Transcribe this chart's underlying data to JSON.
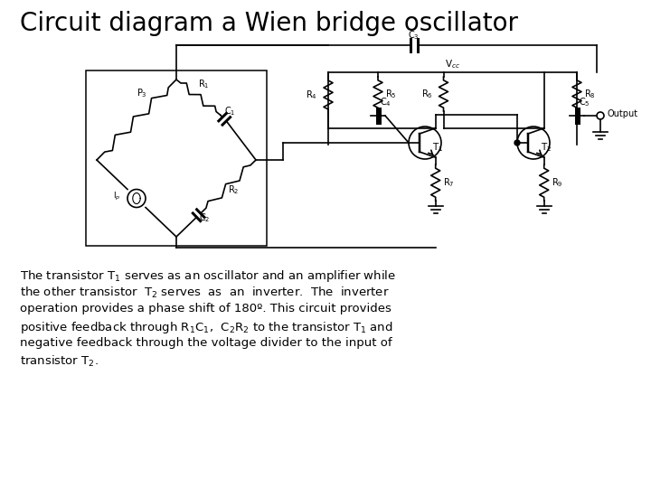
{
  "title": "Circuit diagram a Wien bridge oscillator",
  "title_fontsize": 20,
  "bg_color": "#ffffff",
  "text_color": "#000000",
  "body_lines": [
    "The transistor T$_1$ serves as an oscillator and an amplifier while",
    "the other transistor  T$_2$ serves  as  an  inverter.  The  inverter",
    "operation provides a phase shift of 180º. This circuit provides",
    "positive feedback through R$_1$C$_1$,  C$_2$R$_2$ to the transistor T$_1$ and",
    "negative feedback through the voltage divider to the input of",
    "transistor T$_2$."
  ],
  "lw": 1.2
}
